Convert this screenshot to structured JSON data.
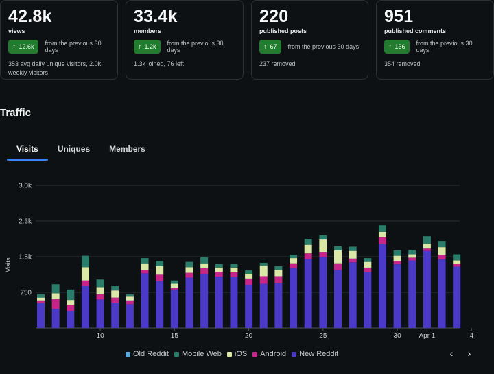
{
  "stats": [
    {
      "value": "42.8k",
      "label": "views",
      "delta": "12.6k",
      "comparison": "from the previous 30 days",
      "detail": "353 avg daily unique visitors, 2.0k weekly visitors"
    },
    {
      "value": "33.4k",
      "label": "members",
      "delta": "1.2k",
      "comparison": "from the previous 30 days",
      "detail": "1.3k joined, 76 left"
    },
    {
      "value": "220",
      "label": "published posts",
      "delta": "67",
      "comparison": "from the previous 30 days",
      "detail": "237 removed"
    },
    {
      "value": "951",
      "label": "published comments",
      "delta": "136",
      "comparison": "from the previous 30 days",
      "detail": "354 removed"
    }
  ],
  "traffic": {
    "title": "Traffic",
    "tabs": [
      {
        "label": "Visits"
      },
      {
        "label": "Uniques"
      },
      {
        "label": "Members"
      }
    ],
    "active_tab": "Visits",
    "prev_icon": "chevron-left-icon",
    "next_icon": "chevron-right-icon"
  },
  "colors": {
    "old_reddit": "#5aa9dd",
    "mobile_web": "#2a7d6a",
    "ios": "#dbe7a7",
    "android": "#c8258a",
    "new_reddit": "#4a3ac7"
  },
  "chart_data": {
    "type": "bar",
    "stacked": true,
    "ylabel": "Visits",
    "yticks": [
      "750",
      "1.5k",
      "2.3k",
      "3.0k"
    ],
    "ytick_values": [
      750,
      1500,
      2250,
      3000
    ],
    "ylim": [
      0,
      3000
    ],
    "xtick_labels": [
      {
        "label": "10",
        "index": 4
      },
      {
        "label": "15",
        "index": 9
      },
      {
        "label": "20",
        "index": 14
      },
      {
        "label": "25",
        "index": 19
      },
      {
        "label": "30",
        "index": 24
      },
      {
        "label": "Apr 1",
        "index": 26
      },
      {
        "label": "4",
        "index": 29
      }
    ],
    "legend": [
      "Old Reddit",
      "Mobile Web",
      "iOS",
      "Android",
      "New Reddit"
    ],
    "legend_position": "bottom",
    "series": [
      {
        "name": "New Reddit",
        "values": [
          520,
          400,
          360,
          880,
          600,
          520,
          500,
          1150,
          980,
          810,
          1060,
          1140,
          1080,
          1070,
          900,
          930,
          940,
          1260,
          1450,
          1500,
          1220,
          1380,
          1170,
          1760,
          1340,
          1420,
          1620,
          1440,
          1290
        ]
      },
      {
        "name": "Android",
        "values": [
          60,
          210,
          130,
          120,
          110,
          120,
          80,
          70,
          140,
          40,
          100,
          120,
          100,
          100,
          140,
          160,
          150,
          100,
          120,
          100,
          140,
          80,
          100,
          150,
          70,
          60,
          50,
          100,
          60
        ]
      },
      {
        "name": "iOS",
        "values": [
          60,
          120,
          100,
          280,
          150,
          150,
          80,
          140,
          180,
          80,
          120,
          100,
          90,
          100,
          100,
          220,
          130,
          110,
          180,
          260,
          270,
          160,
          120,
          110,
          110,
          70,
          100,
          160,
          70
        ]
      },
      {
        "name": "Mobile Web",
        "values": [
          70,
          190,
          220,
          240,
          160,
          90,
          50,
          110,
          110,
          70,
          110,
          130,
          80,
          80,
          70,
          60,
          80,
          70,
          120,
          90,
          90,
          90,
          80,
          140,
          110,
          90,
          160,
          130,
          130
        ]
      },
      {
        "name": "Old Reddit",
        "values": [
          0,
          0,
          0,
          0,
          0,
          0,
          0,
          0,
          0,
          0,
          0,
          0,
          0,
          0,
          0,
          0,
          0,
          0,
          0,
          0,
          0,
          0,
          0,
          0,
          0,
          0,
          0,
          0,
          0
        ]
      }
    ]
  }
}
